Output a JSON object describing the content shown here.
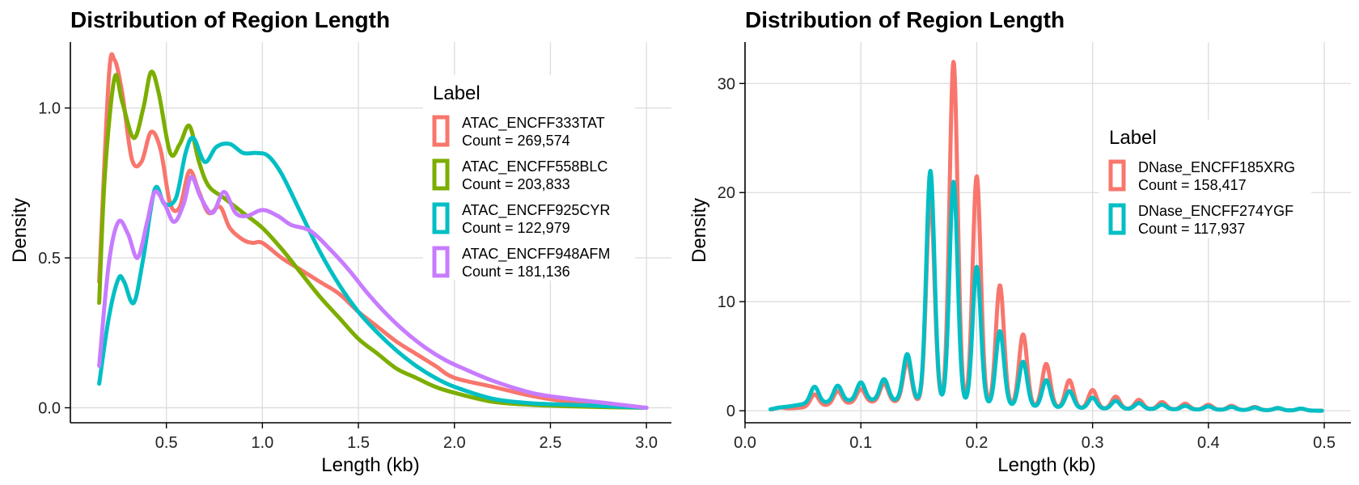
{
  "chart_data": [
    {
      "type": "line",
      "title": "Distribution of Region Length",
      "xlabel": "Length (kb)",
      "ylabel": "Density",
      "xlim": [
        0.0,
        3.13
      ],
      "ylim": [
        -0.05,
        1.22
      ],
      "xticks": [
        0.5,
        1.0,
        1.5,
        2.0,
        2.5,
        3.0
      ],
      "xtick_labels": [
        "0.5",
        "1.0",
        "1.5",
        "2.0",
        "2.5",
        "3.0"
      ],
      "yticks": [
        0.0,
        0.5,
        1.0
      ],
      "ytick_labels": [
        "0.0",
        "0.5",
        "1.0"
      ],
      "grid": true,
      "legend": {
        "title": "Label",
        "position": "top-right",
        "entries": [
          {
            "name": "ATAC_ENCFF333TAT",
            "count": "Count = 269,574",
            "color": "#F8766D"
          },
          {
            "name": "ATAC_ENCFF558BLC",
            "count": "Count = 203,833",
            "color": "#7CAE00"
          },
          {
            "name": "ATAC_ENCFF925CYR",
            "count": "Count = 122,979",
            "color": "#00BFC4"
          },
          {
            "name": "ATAC_ENCFF948AFM",
            "count": "Count = 181,136",
            "color": "#C77CFF"
          }
        ]
      },
      "series": [
        {
          "color": "#F8766D",
          "x": [
            0.15,
            0.2,
            0.23,
            0.27,
            0.32,
            0.37,
            0.42,
            0.47,
            0.52,
            0.57,
            0.62,
            0.67,
            0.72,
            0.78,
            0.83,
            0.9,
            0.95,
            1.0,
            1.1,
            1.2,
            1.3,
            1.4,
            1.5,
            1.6,
            1.7,
            1.8,
            1.9,
            2.0,
            2.2,
            2.4,
            2.6,
            2.8,
            3.0
          ],
          "y": [
            0.42,
            1.1,
            1.16,
            1.05,
            0.83,
            0.82,
            0.92,
            0.86,
            0.68,
            0.67,
            0.79,
            0.72,
            0.65,
            0.67,
            0.6,
            0.56,
            0.55,
            0.55,
            0.5,
            0.46,
            0.42,
            0.38,
            0.32,
            0.27,
            0.22,
            0.18,
            0.14,
            0.1,
            0.07,
            0.04,
            0.02,
            0.01,
            0.0
          ]
        },
        {
          "color": "#7CAE00",
          "x": [
            0.15,
            0.18,
            0.23,
            0.27,
            0.33,
            0.38,
            0.42,
            0.46,
            0.52,
            0.57,
            0.62,
            0.67,
            0.72,
            0.8,
            0.9,
            1.0,
            1.1,
            1.2,
            1.3,
            1.4,
            1.5,
            1.6,
            1.7,
            1.8,
            1.9,
            2.0,
            2.2,
            2.4,
            2.6,
            2.8,
            3.0
          ],
          "y": [
            0.35,
            0.78,
            1.1,
            1.02,
            0.9,
            1.0,
            1.12,
            1.05,
            0.85,
            0.88,
            0.94,
            0.82,
            0.74,
            0.7,
            0.65,
            0.6,
            0.53,
            0.45,
            0.37,
            0.3,
            0.23,
            0.18,
            0.13,
            0.1,
            0.07,
            0.05,
            0.02,
            0.01,
            0.005,
            0.002,
            0.0
          ]
        },
        {
          "color": "#00BFC4",
          "x": [
            0.15,
            0.2,
            0.25,
            0.28,
            0.33,
            0.38,
            0.44,
            0.49,
            0.55,
            0.6,
            0.64,
            0.7,
            0.76,
            0.83,
            0.9,
            0.97,
            1.03,
            1.1,
            1.2,
            1.3,
            1.4,
            1.5,
            1.6,
            1.7,
            1.8,
            1.9,
            2.0,
            2.2,
            2.4,
            2.6,
            2.8,
            3.0
          ],
          "y": [
            0.08,
            0.3,
            0.43,
            0.42,
            0.35,
            0.5,
            0.73,
            0.68,
            0.7,
            0.85,
            0.9,
            0.82,
            0.87,
            0.88,
            0.85,
            0.85,
            0.84,
            0.78,
            0.65,
            0.52,
            0.41,
            0.32,
            0.25,
            0.19,
            0.14,
            0.1,
            0.07,
            0.03,
            0.015,
            0.01,
            0.005,
            0.0
          ]
        },
        {
          "color": "#C77CFF",
          "x": [
            0.15,
            0.2,
            0.25,
            0.3,
            0.35,
            0.4,
            0.44,
            0.49,
            0.54,
            0.59,
            0.63,
            0.68,
            0.74,
            0.8,
            0.86,
            0.92,
            1.0,
            1.08,
            1.15,
            1.25,
            1.35,
            1.45,
            1.55,
            1.65,
            1.75,
            1.85,
            1.95,
            2.05,
            2.2,
            2.4,
            2.6,
            2.8,
            3.0
          ],
          "y": [
            0.14,
            0.48,
            0.62,
            0.58,
            0.5,
            0.62,
            0.72,
            0.68,
            0.62,
            0.68,
            0.77,
            0.7,
            0.65,
            0.72,
            0.65,
            0.64,
            0.66,
            0.64,
            0.61,
            0.59,
            0.53,
            0.46,
            0.38,
            0.31,
            0.25,
            0.2,
            0.16,
            0.13,
            0.09,
            0.05,
            0.03,
            0.015,
            0.0
          ]
        }
      ]
    },
    {
      "type": "line",
      "title": "Distribution of Region Length",
      "xlabel": "Length (kb)",
      "ylabel": "Density",
      "xlim": [
        0.0,
        0.523
      ],
      "ylim": [
        -1.1,
        33.8
      ],
      "xticks": [
        0.0,
        0.1,
        0.2,
        0.3,
        0.4,
        0.5
      ],
      "xtick_labels": [
        "0.0",
        "0.1",
        "0.2",
        "0.3",
        "0.4",
        "0.5"
      ],
      "yticks": [
        0,
        10,
        20,
        30
      ],
      "ytick_labels": [
        "0",
        "10",
        "20",
        "30"
      ],
      "grid": true,
      "legend": {
        "title": "Label",
        "position": "right",
        "entries": [
          {
            "name": "DNase_ENCFF185XRG",
            "count": "Count = 158,417",
            "color": "#F8766D"
          },
          {
            "name": "DNase_ENCFF274YGF",
            "count": "Count = 117,937",
            "color": "#00BFC4"
          }
        ]
      },
      "series": [
        {
          "color": "#F8766D",
          "peaks": [
            [
              0.03,
              0.3
            ],
            [
              0.06,
              1.5
            ],
            [
              0.08,
              1.8
            ],
            [
              0.1,
              2.0
            ],
            [
              0.12,
              2.5
            ],
            [
              0.14,
              4.5
            ],
            [
              0.16,
              19.5
            ],
            [
              0.18,
              32.0
            ],
            [
              0.2,
              21.5
            ],
            [
              0.22,
              11.5
            ],
            [
              0.24,
              7.0
            ],
            [
              0.26,
              4.3
            ],
            [
              0.28,
              2.8
            ],
            [
              0.3,
              1.9
            ],
            [
              0.32,
              1.3
            ],
            [
              0.34,
              1.0
            ],
            [
              0.36,
              0.8
            ],
            [
              0.38,
              0.65
            ],
            [
              0.4,
              0.55
            ],
            [
              0.42,
              0.45
            ],
            [
              0.44,
              0.35
            ],
            [
              0.46,
              0.25
            ],
            [
              0.48,
              0.2
            ]
          ],
          "baseline": [
            [
              0.02,
              0.1
            ],
            [
              0.05,
              0.3
            ],
            [
              0.1,
              0.8
            ],
            [
              0.15,
              0.8
            ],
            [
              0.2,
              0.6
            ],
            [
              0.25,
              0.35
            ],
            [
              0.3,
              0.2
            ],
            [
              0.4,
              0.1
            ],
            [
              0.5,
              0.0
            ]
          ],
          "x_range": [
            0.022,
            0.498
          ]
        },
        {
          "color": "#00BFC4",
          "peaks": [
            [
              0.03,
              0.3
            ],
            [
              0.06,
              2.2
            ],
            [
              0.08,
              2.3
            ],
            [
              0.1,
              2.6
            ],
            [
              0.12,
              2.9
            ],
            [
              0.14,
              5.2
            ],
            [
              0.16,
              22.0
            ],
            [
              0.18,
              21.0
            ],
            [
              0.2,
              13.2
            ],
            [
              0.22,
              7.3
            ],
            [
              0.24,
              4.5
            ],
            [
              0.26,
              2.8
            ],
            [
              0.28,
              1.8
            ],
            [
              0.3,
              1.2
            ],
            [
              0.32,
              0.9
            ],
            [
              0.34,
              0.7
            ],
            [
              0.36,
              0.55
            ],
            [
              0.38,
              0.45
            ],
            [
              0.4,
              0.4
            ],
            [
              0.42,
              0.35
            ],
            [
              0.44,
              0.3
            ],
            [
              0.46,
              0.25
            ],
            [
              0.48,
              0.2
            ]
          ],
          "baseline": [
            [
              0.02,
              0.1
            ],
            [
              0.05,
              0.6
            ],
            [
              0.1,
              1.0
            ],
            [
              0.15,
              0.9
            ],
            [
              0.2,
              0.6
            ],
            [
              0.25,
              0.35
            ],
            [
              0.3,
              0.2
            ],
            [
              0.4,
              0.1
            ],
            [
              0.5,
              0.0
            ]
          ],
          "x_range": [
            0.022,
            0.498
          ]
        }
      ]
    }
  ]
}
